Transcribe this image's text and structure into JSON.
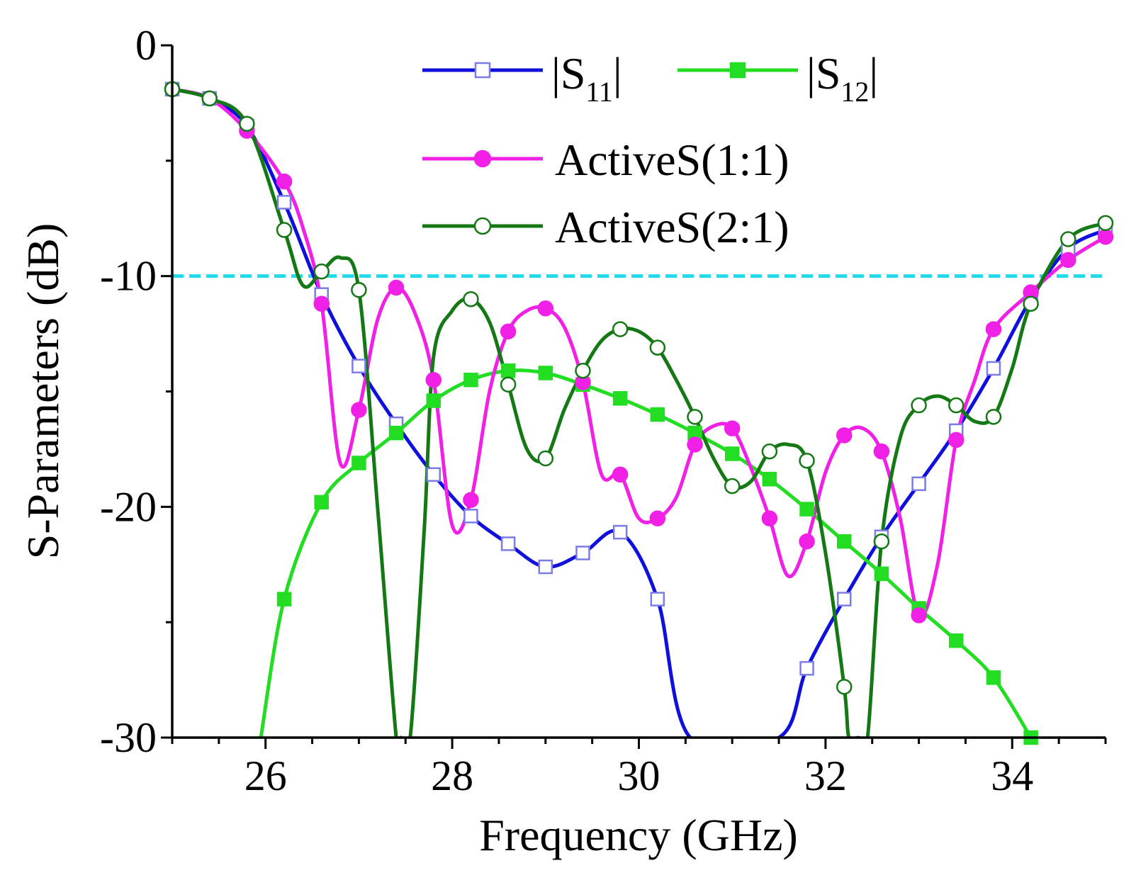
{
  "chart_data": {
    "type": "line",
    "title": "",
    "xlabel": "Frequency (GHz)",
    "ylabel": "S-Parameters (dB)",
    "xlim": [
      25,
      35
    ],
    "ylim": [
      -30,
      0
    ],
    "xticks": [
      26,
      28,
      30,
      32,
      34
    ],
    "yticks": [
      0,
      -10,
      -20,
      -30
    ],
    "xtick_labels": [
      "26",
      "28",
      "30",
      "32",
      "34"
    ],
    "ytick_labels": [
      "0",
      "-10",
      "-20",
      "-30"
    ],
    "reference_line": {
      "y": -10,
      "color": "#1EDCEB",
      "style": "dashed"
    },
    "legend_position": "top-right",
    "series": [
      {
        "name": "|S11|",
        "legend_main": "S",
        "legend_sub": "11",
        "color": "#1010DC",
        "marker": "open-square",
        "x": [
          25.0,
          25.4,
          25.8,
          26.2,
          26.6,
          27.0,
          27.4,
          27.8,
          28.2,
          28.6,
          29.0,
          29.4,
          29.8,
          30.2,
          30.55,
          31.5,
          31.8,
          32.2,
          32.6,
          33.0,
          33.4,
          33.8,
          34.2,
          34.6,
          35.0
        ],
        "y": [
          -1.9,
          -2.3,
          -3.5,
          -6.8,
          -10.8,
          -13.9,
          -16.4,
          -18.6,
          -20.4,
          -21.6,
          -22.6,
          -22.0,
          -21.1,
          -24.0,
          -30.0,
          -30.0,
          -27.0,
          -24.0,
          -21.3,
          -19.0,
          -16.7,
          -14.0,
          -11.0,
          -8.8,
          -8.0
        ],
        "marker_x": [
          25.0,
          25.4,
          25.8,
          26.2,
          26.6,
          27.0,
          27.4,
          27.8,
          28.2,
          28.6,
          29.0,
          29.4,
          29.8,
          30.2,
          31.8,
          32.2,
          32.6,
          33.0,
          33.4,
          33.8,
          34.2,
          34.6,
          35.0
        ],
        "marker_y": [
          -1.9,
          -2.3,
          -3.5,
          -6.8,
          -10.8,
          -13.9,
          -16.4,
          -18.6,
          -20.4,
          -21.6,
          -22.6,
          -22.0,
          -21.1,
          -24.0,
          -27.0,
          -24.0,
          -21.3,
          -19.0,
          -16.7,
          -14.0,
          -11.0,
          -8.8,
          -8.0
        ]
      },
      {
        "name": "|S12|",
        "legend_main": "S",
        "legend_sub": "12",
        "color": "#22DD22",
        "marker": "filled-square",
        "x": [
          25.95,
          26.2,
          26.6,
          27.0,
          27.4,
          27.8,
          28.2,
          28.6,
          29.0,
          29.4,
          29.8,
          30.2,
          30.6,
          31.0,
          31.4,
          31.8,
          32.2,
          32.6,
          33.0,
          33.4,
          33.8,
          34.2
        ],
        "y": [
          -30.0,
          -24.0,
          -19.8,
          -18.1,
          -16.8,
          -15.4,
          -14.5,
          -14.1,
          -14.2,
          -14.7,
          -15.3,
          -16.0,
          -16.8,
          -17.7,
          -18.8,
          -20.1,
          -21.5,
          -22.9,
          -24.4,
          -25.8,
          -27.4,
          -30.0
        ],
        "marker_x": [
          26.2,
          26.6,
          27.0,
          27.4,
          27.8,
          28.2,
          28.6,
          29.0,
          29.4,
          29.8,
          30.2,
          30.6,
          31.0,
          31.4,
          31.8,
          32.2,
          32.6,
          33.0,
          33.4,
          33.8,
          34.2
        ],
        "marker_y": [
          -24.0,
          -19.8,
          -18.1,
          -16.8,
          -15.4,
          -14.5,
          -14.1,
          -14.2,
          -14.7,
          -15.3,
          -16.0,
          -16.8,
          -17.7,
          -18.8,
          -20.1,
          -21.5,
          -22.9,
          -24.4,
          -25.8,
          -27.4,
          -30.0
        ]
      },
      {
        "name": "ActiveS(1:1)",
        "legend_main": "ActiveS(1:1)",
        "color": "#F020E6",
        "marker": "filled-circle",
        "x": [
          25.0,
          25.4,
          25.8,
          26.2,
          26.4,
          26.6,
          26.8,
          27.0,
          27.2,
          27.4,
          27.6,
          27.8,
          28.0,
          28.2,
          28.4,
          28.6,
          28.8,
          29.0,
          29.2,
          29.4,
          29.6,
          29.8,
          30.0,
          30.2,
          30.4,
          30.6,
          30.8,
          31.0,
          31.2,
          31.4,
          31.6,
          31.8,
          32.0,
          32.2,
          32.4,
          32.6,
          32.8,
          33.0,
          33.2,
          33.4,
          33.6,
          33.8,
          34.2,
          34.6,
          35.0
        ],
        "y": [
          -1.9,
          -2.3,
          -3.7,
          -5.9,
          -7.9,
          -11.2,
          -18.1,
          -15.8,
          -11.9,
          -10.5,
          -11.6,
          -14.5,
          -20.8,
          -19.7,
          -15.0,
          -12.4,
          -11.5,
          -11.4,
          -12.2,
          -14.6,
          -18.6,
          -18.6,
          -20.5,
          -20.5,
          -19.6,
          -17.3,
          -16.5,
          -16.6,
          -18.3,
          -20.5,
          -23.0,
          -21.5,
          -18.5,
          -16.9,
          -16.6,
          -17.6,
          -20.5,
          -24.7,
          -22.5,
          -17.1,
          -14.5,
          -12.3,
          -10.7,
          -9.3,
          -8.3
        ],
        "marker_x": [
          25.0,
          25.4,
          25.8,
          26.2,
          26.6,
          27.0,
          27.4,
          27.8,
          28.2,
          28.6,
          29.0,
          29.4,
          29.8,
          30.2,
          30.6,
          31.0,
          31.4,
          31.8,
          32.2,
          32.6,
          33.0,
          33.4,
          33.8,
          34.2,
          34.6,
          35.0
        ],
        "marker_y": [
          -1.9,
          -2.3,
          -3.7,
          -5.9,
          -11.2,
          -15.8,
          -10.5,
          -14.5,
          -19.7,
          -12.4,
          -11.4,
          -14.6,
          -18.6,
          -20.5,
          -17.3,
          -16.6,
          -20.5,
          -21.5,
          -16.9,
          -17.6,
          -24.7,
          -17.1,
          -12.3,
          -10.7,
          -9.3,
          -8.3
        ]
      },
      {
        "name": "ActiveS(2:1)",
        "legend_main": "ActiveS(2:1)",
        "color": "#147814",
        "marker": "open-circle",
        "x": [
          25.0,
          25.4,
          25.8,
          26.2,
          26.4,
          26.6,
          26.8,
          27.0,
          27.2,
          27.4,
          27.45,
          27.55,
          27.7,
          27.8,
          28.0,
          28.2,
          28.4,
          28.6,
          28.8,
          29.0,
          29.2,
          29.4,
          29.6,
          29.8,
          30.0,
          30.2,
          30.4,
          30.6,
          30.8,
          31.0,
          31.2,
          31.4,
          31.6,
          31.8,
          32.0,
          32.2,
          32.25,
          32.35,
          32.45,
          32.6,
          32.8,
          33.0,
          33.2,
          33.4,
          33.6,
          33.8,
          34.0,
          34.2,
          34.6,
          35.0
        ],
        "y": [
          -1.9,
          -2.3,
          -3.4,
          -8.0,
          -10.4,
          -9.8,
          -9.2,
          -10.6,
          -20.0,
          -30.0,
          -30.0,
          -30.0,
          -21.0,
          -13.5,
          -11.5,
          -11.0,
          -12.0,
          -14.7,
          -17.5,
          -17.9,
          -15.8,
          -14.1,
          -12.8,
          -12.3,
          -12.4,
          -13.1,
          -14.5,
          -16.1,
          -17.9,
          -19.1,
          -18.9,
          -17.6,
          -17.3,
          -18.0,
          -22.0,
          -27.8,
          -30.0,
          -30.0,
          -30.0,
          -21.5,
          -17.0,
          -15.6,
          -15.2,
          -15.6,
          -16.3,
          -16.1,
          -14.0,
          -11.2,
          -8.4,
          -7.7
        ],
        "marker_x": [
          25.0,
          25.4,
          25.8,
          26.2,
          26.6,
          27.0,
          28.2,
          28.6,
          29.0,
          29.4,
          29.8,
          30.2,
          30.6,
          31.0,
          31.4,
          31.8,
          32.2,
          32.6,
          33.0,
          33.4,
          33.8,
          34.2,
          34.6,
          35.0
        ],
        "marker_y": [
          -1.9,
          -2.3,
          -3.4,
          -8.0,
          -9.8,
          -10.6,
          -11.0,
          -14.7,
          -17.9,
          -14.1,
          -12.3,
          -13.1,
          -16.1,
          -19.1,
          -17.6,
          -18.0,
          -27.8,
          -21.5,
          -15.6,
          -15.6,
          -16.1,
          -11.2,
          -8.4,
          -7.7
        ]
      }
    ]
  }
}
